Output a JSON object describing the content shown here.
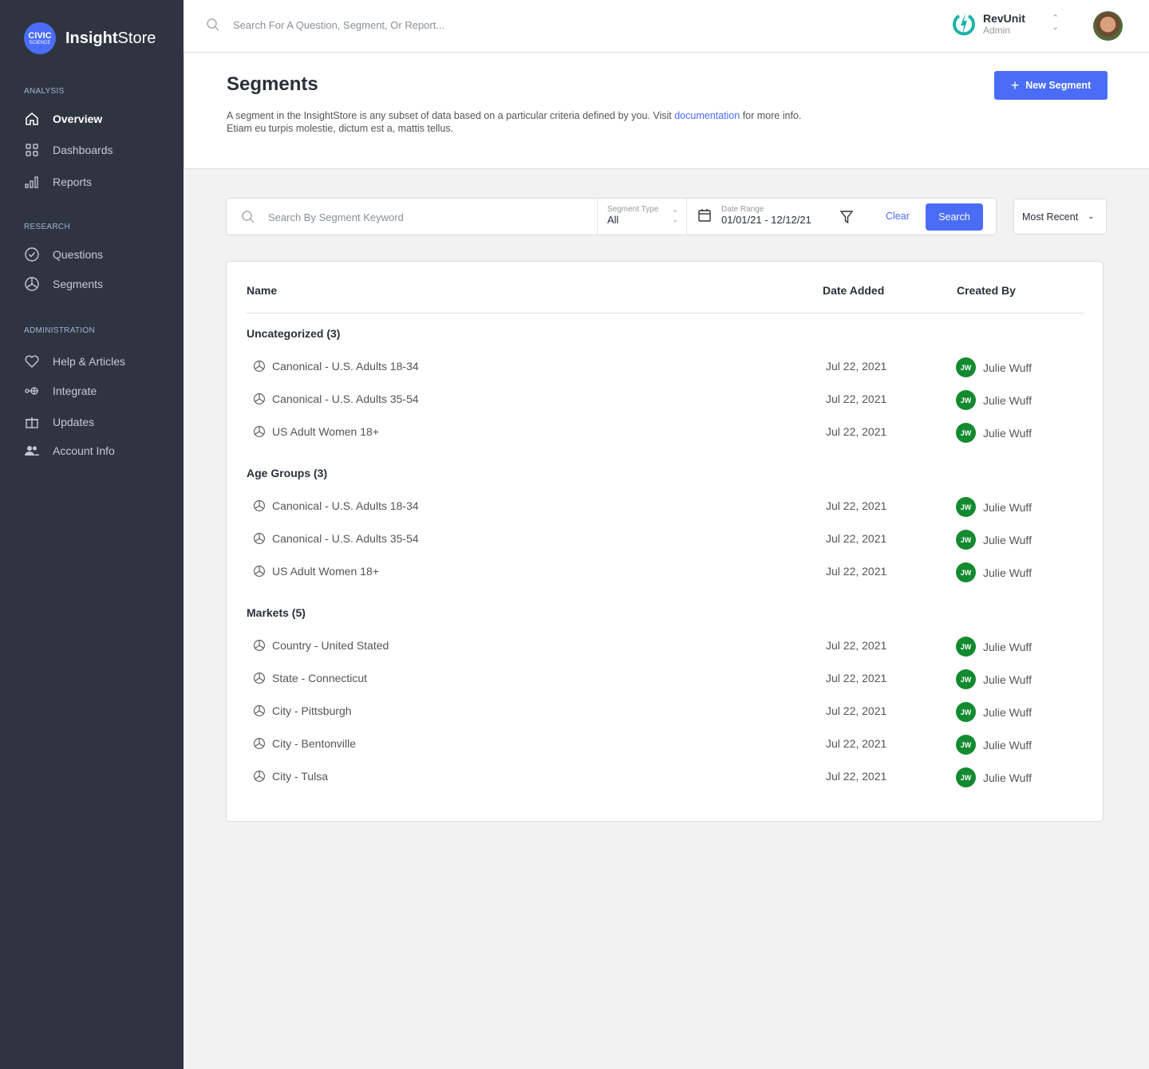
{
  "brand": {
    "badge_top": "CIVIC",
    "badge_bottom": "SCIENCE",
    "name_bold": "Insight",
    "name_light": "Store"
  },
  "sidebar": {
    "sections": [
      {
        "label": "ANALYSIS",
        "items": [
          {
            "label": "Overview",
            "icon": "home-icon",
            "active": true
          },
          {
            "label": "Dashboards",
            "icon": "grid-icon"
          },
          {
            "label": "Reports",
            "icon": "bar-chart-icon"
          }
        ]
      },
      {
        "label": "RESEARCH",
        "items": [
          {
            "label": "Questions",
            "icon": "check-circle-icon"
          },
          {
            "label": "Segments",
            "icon": "pie-chart-icon"
          }
        ]
      },
      {
        "label": "ADMINISTRATION",
        "items": [
          {
            "label": "Help & Articles",
            "icon": "heart-icon"
          },
          {
            "label": "Integrate",
            "icon": "integrate-icon"
          },
          {
            "label": "Updates",
            "icon": "gift-icon"
          },
          {
            "label": "Account Info",
            "icon": "users-icon"
          }
        ]
      }
    ]
  },
  "topbar": {
    "search_placeholder": "Search For A Question, Segment, Or Report...",
    "org_name": "RevUnit",
    "org_role": "Admin"
  },
  "header": {
    "title": "Segments",
    "desc_before": "A segment in the InsightStore is any subset of data based on a particular criteria defined by you. Visit ",
    "desc_link": "documentation",
    "desc_after": " for more info.",
    "desc_line2": "Etiam eu turpis molestie, dictum est a, mattis tellus.",
    "new_button": "New Segment"
  },
  "filter": {
    "search_placeholder": "Search By Segment Keyword",
    "type_label": "Segment Type",
    "type_value": "All",
    "date_label": "Date Range",
    "date_value": "01/01/21 - 12/12/21",
    "clear": "Clear",
    "search": "Search",
    "sort": "Most Recent"
  },
  "table": {
    "columns": [
      "Name",
      "Date Added",
      "Created By"
    ],
    "groups": [
      {
        "title": "Uncategorized (3)",
        "rows": [
          {
            "name": "Canonical - U.S. Adults 18-34",
            "date": "Jul 22, 2021",
            "initials": "JW",
            "by": "Julie Wuff"
          },
          {
            "name": "Canonical - U.S. Adults 35-54",
            "date": "Jul 22, 2021",
            "initials": "JW",
            "by": "Julie Wuff"
          },
          {
            "name": "US Adult Women 18+",
            "date": "Jul 22, 2021",
            "initials": "JW",
            "by": "Julie Wuff"
          }
        ]
      },
      {
        "title": "Age Groups (3)",
        "rows": [
          {
            "name": "Canonical - U.S. Adults 18-34",
            "date": "Jul 22, 2021",
            "initials": "JW",
            "by": "Julie Wuff"
          },
          {
            "name": "Canonical - U.S. Adults 35-54",
            "date": "Jul 22, 2021",
            "initials": "JW",
            "by": "Julie Wuff"
          },
          {
            "name": "US Adult Women 18+",
            "date": "Jul 22, 2021",
            "initials": "JW",
            "by": "Julie Wuff"
          }
        ]
      },
      {
        "title": "Markets (5)",
        "rows": [
          {
            "name": "Country - United Stated",
            "date": "Jul 22, 2021",
            "initials": "JW",
            "by": "Julie Wuff"
          },
          {
            "name": "State - Connecticut",
            "date": "Jul 22, 2021",
            "initials": "JW",
            "by": "Julie Wuff"
          },
          {
            "name": "City - Pittsburgh",
            "date": "Jul 22, 2021",
            "initials": "JW",
            "by": "Julie Wuff"
          },
          {
            "name": "City - Bentonville",
            "date": "Jul 22, 2021",
            "initials": "JW",
            "by": "Julie Wuff"
          },
          {
            "name": "City - Tulsa",
            "date": "Jul 22, 2021",
            "initials": "JW",
            "by": "Julie Wuff"
          }
        ]
      }
    ]
  },
  "colors": {
    "accent": "#4a6cf7",
    "sidebar": "#2f3540",
    "avatar_green": "#138a2f",
    "org_teal": "#1bb3a6"
  }
}
